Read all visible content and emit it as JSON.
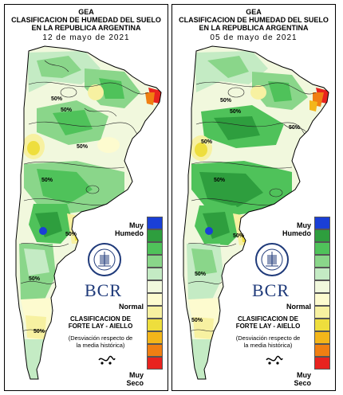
{
  "panels": [
    {
      "title_line1": "GEA",
      "title_line2": "CLASIFICACION DE HUMEDAD DEL SUELO",
      "title_line3": "EN LA REPUBLICA ARGENTINA",
      "date": "12 de mayo de 2021",
      "contour_labels": [
        "50%",
        "50%",
        "50%",
        "50%",
        "50%",
        "50%",
        "50%"
      ]
    },
    {
      "title_line1": "GEA",
      "title_line2": "CLASIFICACION DE HUMEDAD DEL SUELO",
      "title_line3": "EN LA REPUBLICA ARGENTINA",
      "date": "05 de mayo de 2021",
      "contour_labels": [
        "50%",
        "50%",
        "50%",
        "50%",
        "50%",
        "50%",
        "50%",
        "50%"
      ]
    }
  ],
  "legend": {
    "top_label": "Muy\nHumedo",
    "mid_label": "Normal",
    "bottom_label": "Muy\nSeco",
    "colors": [
      "#1a3fd6",
      "#2e9e3e",
      "#4fc25a",
      "#8ad68a",
      "#c4ebc4",
      "#f1f8dd",
      "#fdfbcf",
      "#f7f1a1",
      "#eede3d",
      "#f3b61a",
      "#f07f12",
      "#e8231f"
    ],
    "logo_text": "BCR",
    "classification_title": "CLASIFICACION DE\nFORTE LAY - AIELLO",
    "classification_note": "(Desviación respecto de\nla media histórica)"
  }
}
